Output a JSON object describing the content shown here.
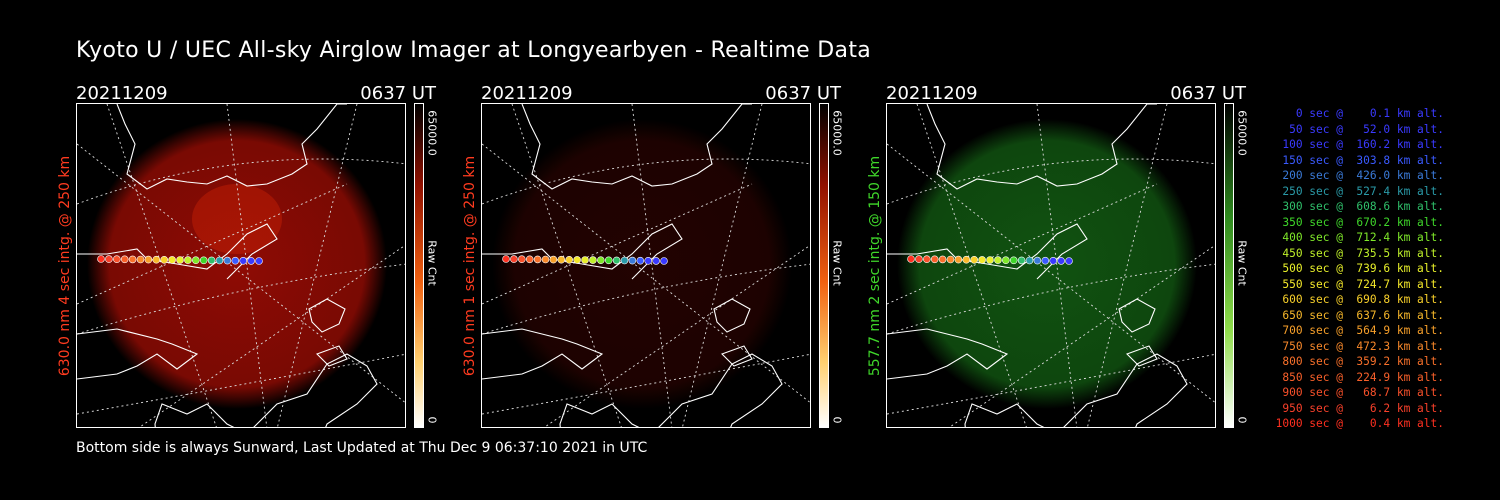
{
  "title": "Kyoto U / UEC All-sky Airglow Imager at Longyearbyen - Realtime Data",
  "footer": "Bottom side is always Sunward, Last Updated at Thu Dec  9 06:37:10 2021 in UTC",
  "panels": [
    {
      "date": "20211209",
      "time": "0637 UT",
      "ylabel": "630.0 nm 4 sec intg. @ 250 km",
      "label_color": "#ff3b1f",
      "cbar_max": "65000.0",
      "cbar_unit": "Raw Cnt",
      "cbar_min": "0",
      "glow": "red",
      "intensity": "high"
    },
    {
      "date": "20211209",
      "time": "0637 UT",
      "ylabel": "630.0 nm 1 sec intg. @ 250 km",
      "label_color": "#ff3b1f",
      "cbar_max": "65000.0",
      "cbar_unit": "Raw Cnt",
      "cbar_min": "0",
      "glow": "red",
      "intensity": "low"
    },
    {
      "date": "20211209",
      "time": "0637 UT",
      "ylabel": "557.7 nm 2 sec intg. @ 150 km",
      "label_color": "#3fd62a",
      "cbar_max": "65000.0",
      "cbar_unit": "Raw Cnt",
      "cbar_min": "0",
      "glow": "green",
      "intensity": "mid"
    }
  ],
  "legend": [
    {
      "text": "   0 sec @    0.1 km alt.",
      "color": "#3a3aff"
    },
    {
      "text": "  50 sec @   52.0 km alt.",
      "color": "#3a3aff"
    },
    {
      "text": " 100 sec @  160.2 km alt.",
      "color": "#3a3aff"
    },
    {
      "text": " 150 sec @  303.8 km alt.",
      "color": "#3a5aff"
    },
    {
      "text": " 200 sec @  426.0 km alt.",
      "color": "#3a7ad8"
    },
    {
      "text": " 250 sec @  527.4 km alt.",
      "color": "#2a9aa8"
    },
    {
      "text": " 300 sec @  608.6 km alt.",
      "color": "#2fbf6a"
    },
    {
      "text": " 350 sec @  670.2 km alt.",
      "color": "#3fd62a"
    },
    {
      "text": " 400 sec @  712.4 km alt.",
      "color": "#7fe82a"
    },
    {
      "text": " 450 sec @  735.5 km alt.",
      "color": "#bff02a"
    },
    {
      "text": " 500 sec @  739.6 km alt.",
      "color": "#e8f02a"
    },
    {
      "text": " 550 sec @  724.7 km alt.",
      "color": "#f4e82a"
    },
    {
      "text": " 600 sec @  690.8 km alt.",
      "color": "#f8d02a"
    },
    {
      "text": " 650 sec @  637.6 km alt.",
      "color": "#f8b82a"
    },
    {
      "text": " 700 sec @  564.9 km alt.",
      "color": "#f8a02a"
    },
    {
      "text": " 750 sec @  472.3 km alt.",
      "color": "#f8882a"
    },
    {
      "text": " 800 sec @  359.2 km alt.",
      "color": "#f8702a"
    },
    {
      "text": " 850 sec @  224.9 km alt.",
      "color": "#f8602a"
    },
    {
      "text": " 900 sec @   68.7 km alt.",
      "color": "#f8502a"
    },
    {
      "text": " 950 sec @    6.2 km alt.",
      "color": "#f8402a"
    },
    {
      "text": "1000 sec @    0.4 km alt.",
      "color": "#ff3020"
    }
  ]
}
